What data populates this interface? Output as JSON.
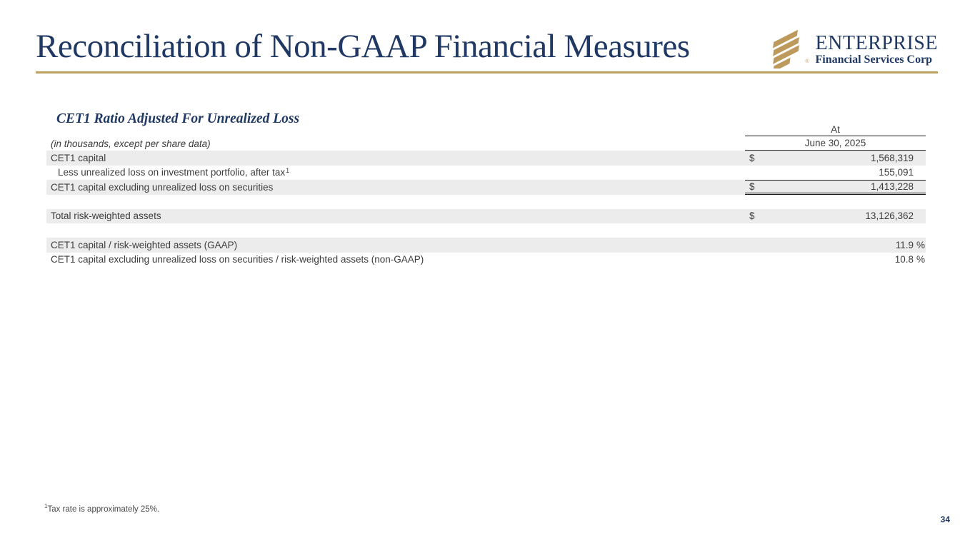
{
  "slide": {
    "title": "Reconciliation of Non-GAAP Financial Measures",
    "page_number": "34"
  },
  "logo": {
    "brand": "ENTERPRISE",
    "brand_subtitle": "Financial Services Corp",
    "icon": "enterprise-stripes-icon",
    "registered_mark": "®"
  },
  "section_heading": "CET1 Ratio Adjusted For Unrealized Loss",
  "table": {
    "units_note": "(in thousands, except per share data)",
    "period_group_label": "At",
    "period_label": "June 30, 2025",
    "rows": [
      {
        "label": "CET1 capital",
        "label_sup": "",
        "indent": false,
        "shaded": true,
        "dollar": "$",
        "value": "1,568,319",
        "unit": "",
        "rule": ""
      },
      {
        "label": "Less unrealized loss on investment portfolio, after tax",
        "label_sup": "1",
        "indent": true,
        "shaded": false,
        "dollar": "",
        "value": "155,091",
        "unit": "",
        "rule": ""
      },
      {
        "label": "CET1 capital excluding unrealized loss on securities",
        "label_sup": "",
        "indent": false,
        "shaded": true,
        "dollar": "$",
        "value": "1,413,228",
        "unit": "",
        "rule": "top-doublebottom"
      },
      {
        "spacer": true
      },
      {
        "label": "Total risk-weighted assets",
        "label_sup": "",
        "indent": false,
        "shaded": true,
        "dollar": "$",
        "value": "13,126,362",
        "unit": "",
        "rule": ""
      },
      {
        "spacer": true
      },
      {
        "label": "CET1 capital / risk-weighted assets (GAAP)",
        "label_sup": "",
        "indent": false,
        "shaded": true,
        "dollar": "",
        "value": "11.9",
        "unit": "%",
        "rule": ""
      },
      {
        "label": "CET1 capital excluding unrealized loss on securities / risk-weighted assets (non-GAAP)",
        "label_sup": "",
        "indent": false,
        "shaded": false,
        "dollar": "",
        "value": "10.8",
        "unit": "%",
        "rule": ""
      }
    ]
  },
  "footnote": {
    "sup": "1",
    "text": "Tax rate is approximately 25%."
  },
  "colors": {
    "navy": "#1f3864",
    "gold": "#bfa05e",
    "row_shade": "#ececec",
    "body_text": "#3d3d3d"
  }
}
